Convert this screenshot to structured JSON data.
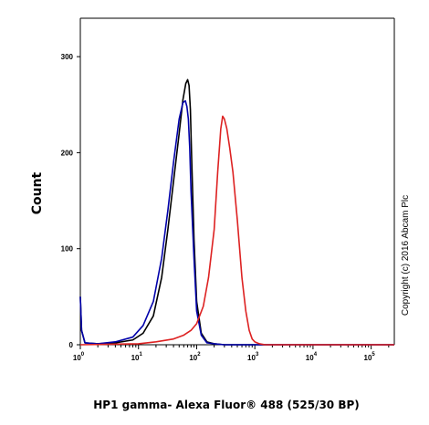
{
  "chart_data": {
    "type": "line",
    "title": "",
    "xlabel": "HP1 gamma- Alexa Fluor® 488 (525/30 BP)",
    "ylabel": "Count",
    "x_scale": "log",
    "xlim": [
      1,
      250000
    ],
    "ylim": [
      0,
      340
    ],
    "y_ticks": [
      0,
      100,
      200,
      300
    ],
    "y_tick_labels": [
      "0",
      "100",
      "200",
      "300"
    ],
    "x_ticks": [
      1,
      10,
      100,
      1000,
      10000,
      100000
    ],
    "x_tick_labels": [
      {
        "base": "10",
        "exp": "0"
      },
      {
        "base": "10",
        "exp": "1"
      },
      {
        "base": "10",
        "exp": "2"
      },
      {
        "base": "10",
        "exp": "3"
      },
      {
        "base": "10",
        "exp": "4"
      },
      {
        "base": "10",
        "exp": "5"
      }
    ],
    "y_zero_label": "0",
    "grid": false,
    "legend": "none",
    "annotation": "Copyright (c) 2016 Abcam Plc",
    "series": [
      {
        "color": "#000000",
        "x": [
          1,
          1.05,
          1.2,
          2,
          4,
          8,
          12,
          18,
          25,
          32,
          40,
          50,
          58,
          65,
          70,
          74,
          78,
          82,
          90,
          100,
          120,
          150,
          200,
          300,
          1000,
          250000
        ],
        "y": [
          50,
          15,
          2,
          1,
          2,
          5,
          12,
          30,
          70,
          120,
          170,
          220,
          255,
          272,
          276,
          270,
          245,
          195,
          110,
          45,
          12,
          3,
          1,
          0,
          0,
          0
        ]
      },
      {
        "color": "#0000aa",
        "x": [
          1,
          1.05,
          1.2,
          2,
          4,
          8,
          12,
          18,
          25,
          32,
          40,
          50,
          58,
          64,
          68,
          72,
          76,
          80,
          90,
          100,
          120,
          150,
          200,
          300,
          1000,
          250000
        ],
        "y": [
          50,
          15,
          2,
          1,
          3,
          8,
          20,
          45,
          90,
          140,
          190,
          235,
          252,
          254,
          248,
          235,
          205,
          160,
          90,
          35,
          10,
          2,
          1,
          0,
          0,
          0
        ]
      },
      {
        "color": "#dd2222",
        "x": [
          1,
          10,
          20,
          40,
          60,
          80,
          100,
          130,
          160,
          200,
          230,
          260,
          280,
          300,
          330,
          370,
          420,
          500,
          600,
          700,
          800,
          900,
          1000,
          1200,
          1500,
          250000
        ],
        "y": [
          0,
          1,
          3,
          6,
          10,
          15,
          22,
          40,
          70,
          120,
          180,
          225,
          238,
          235,
          225,
          205,
          180,
          130,
          70,
          35,
          15,
          6,
          3,
          1,
          0,
          0
        ]
      }
    ]
  }
}
